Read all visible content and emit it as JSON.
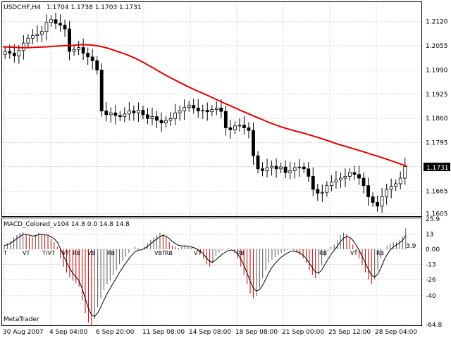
{
  "window": {
    "title": "USDCHF,H4",
    "ohlc": "1.1704 1.1738 1.1703 1.1731"
  },
  "price_panel": {
    "current_price": "1.1731",
    "price_axis": [
      "1.2120",
      "1.2055",
      "1.1990",
      "1.1925",
      "1.1860",
      "1.1795",
      "1.1731",
      "1.1665",
      "1.1605"
    ]
  },
  "indicator_panel": {
    "title": "MACD_Colored_v104 14.8 0.0 14.8 14.8",
    "axis": [
      "25.9",
      "13",
      "0.00",
      "-13",
      "-26",
      "-40",
      "-64.8"
    ],
    "value_readout": "3.9",
    "signals": [
      "T",
      "VT",
      "T/VT",
      "VT",
      "RB",
      "VB",
      "RB",
      "VBT",
      "RB",
      "VT",
      "RB",
      "RB",
      "VT",
      "RB"
    ],
    "watermark": "MetaTrader"
  },
  "time_axis": [
    "30 Aug 2007",
    "4 Sep 04:00",
    "6 Sep 20:00",
    "11 Sep 08:00",
    "14 Sep 08:00",
    "18 Sep 08:00",
    "21 Sep 00:00",
    "25 Sep 12:00",
    "28 Sep 04:00"
  ],
  "colors": {
    "ma_line": "#e00000",
    "macd_up": "#555555",
    "macd_down": "#c00000",
    "grid": "#aaaaaa",
    "price_tag_bg": "#000000"
  },
  "chart_data": [
    {
      "type": "candlestick",
      "title": "USDCHF,H4",
      "symbol": "USDCHF",
      "timeframe": "H4",
      "x_labels": [
        "30 Aug 2007",
        "4 Sep 04:00",
        "6 Sep 20:00",
        "11 Sep 08:00",
        "14 Sep 08:00",
        "18 Sep 08:00",
        "21 Sep 00:00",
        "25 Sep 12:00",
        "28 Sep 04:00"
      ],
      "ylim": [
        1.16,
        1.217
      ],
      "yticks": [
        1.212,
        1.2055,
        1.199,
        1.1925,
        1.186,
        1.1795,
        1.1731,
        1.1665,
        1.1605
      ],
      "grid": true,
      "close_series": [
        1.204,
        1.2035,
        1.2028,
        1.2042,
        1.2062,
        1.2075,
        1.2082,
        1.2086,
        1.2093,
        1.2118,
        1.2125,
        1.2115,
        1.211,
        1.21,
        1.204,
        1.2045,
        1.205,
        1.2035,
        1.2025,
        1.2015,
        1.199,
        1.188,
        1.187,
        1.1875,
        1.1868,
        1.1865,
        1.1872,
        1.188,
        1.1875,
        1.1882,
        1.187,
        1.186,
        1.1865,
        1.1855,
        1.1848,
        1.1855,
        1.186,
        1.1875,
        1.188,
        1.189,
        1.1895,
        1.1888,
        1.188,
        1.1882,
        1.1878,
        1.1884,
        1.1888,
        1.1879,
        1.1835,
        1.183,
        1.184,
        1.1842,
        1.1835,
        1.1828,
        1.176,
        1.1725,
        1.172,
        1.1728,
        1.1732,
        1.1725,
        1.173,
        1.1715,
        1.172,
        1.1728,
        1.173,
        1.1725,
        1.1705,
        1.167,
        1.166,
        1.1662,
        1.168,
        1.169,
        1.1695,
        1.17,
        1.1705,
        1.1715,
        1.171,
        1.17,
        1.168,
        1.165,
        1.1635,
        1.1625,
        1.165,
        1.167,
        1.1678,
        1.1685,
        1.17,
        1.1731
      ],
      "moving_average": [
        1.2052,
        1.2051,
        1.205,
        1.205,
        1.2051,
        1.2052,
        1.2054,
        1.2055,
        1.2056,
        1.2058,
        1.2057,
        1.2054,
        1.2048,
        1.204,
        1.2032,
        1.2022,
        1.201,
        1.1997,
        1.1983,
        1.197,
        1.1958,
        1.1946,
        1.1935,
        1.1925,
        1.1914,
        1.1903,
        1.1893,
        1.1882,
        1.1872,
        1.1862,
        1.1852,
        1.1843,
        1.1835,
        1.1828,
        1.1822,
        1.1815,
        1.1808,
        1.18,
        1.1792,
        1.1785,
        1.1778,
        1.1771,
        1.1763,
        1.1756,
        1.1748,
        1.174,
        1.1731
      ]
    },
    {
      "type": "bar",
      "title": "MACD_Colored_v104 14.8 0.0 14.8 14.8",
      "ylim": [
        -64.8,
        25.9
      ],
      "yticks": [
        25.9,
        13,
        0,
        -13,
        -26,
        -40,
        -64.8
      ],
      "values": [
        3,
        5,
        7,
        10,
        12,
        14,
        15,
        13,
        11,
        10,
        12,
        14,
        13,
        12,
        11,
        9,
        6,
        2,
        -8,
        -15,
        -20,
        -24,
        -27,
        -29,
        -32,
        -44,
        -55,
        -63,
        -65,
        -60,
        -50,
        -42,
        -35,
        -30,
        -27,
        -22,
        -18,
        -13,
        -10,
        -6,
        -3,
        0,
        2,
        1,
        0,
        2,
        5,
        8,
        10,
        12,
        14,
        13,
        10,
        6,
        3,
        2,
        1,
        2,
        3,
        2,
        1,
        0,
        -2,
        -4,
        -8,
        -13,
        -15,
        -12,
        -6,
        -3,
        -1,
        0,
        1,
        0,
        -3,
        -8,
        -15,
        -22,
        -30,
        -38,
        -42,
        -40,
        -33,
        -25,
        -18,
        -12,
        -9,
        -7,
        -5,
        -3,
        -2,
        -1,
        0,
        -1,
        -3,
        -5,
        -8,
        -12,
        -18,
        -22,
        -25,
        -22,
        -14,
        -6,
        -2,
        2,
        4,
        8,
        12,
        14,
        13,
        9,
        4,
        -2,
        -8,
        -14,
        -20,
        -26,
        -30,
        -26,
        -18,
        -8,
        0,
        3,
        5,
        6,
        6,
        8,
        11,
        18
      ]
    }
  ]
}
